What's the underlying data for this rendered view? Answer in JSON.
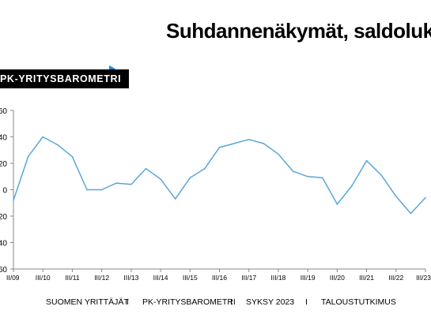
{
  "header": {
    "title": "Suhdannenäkymät, saldoluku",
    "brand": "PK-YRITYSBAROMETRI"
  },
  "footer": {
    "items": [
      "SUOMEN YRITTÄJÄT",
      "PK-YRITYSBAROMETRI",
      "SYKSY 2023",
      "TALOUSTUTKIMUS"
    ],
    "separator": "I"
  },
  "chart_data": {
    "type": "line",
    "title": "Suhdannenäkymät, saldoluku",
    "xlabel": "",
    "ylabel": "",
    "ylim": [
      -60,
      60
    ],
    "yticks": [
      -60,
      -40,
      -20,
      0,
      20,
      40,
      60
    ],
    "ytick_labels": [
      "60",
      "40",
      "20",
      "0",
      "20",
      "40",
      "60"
    ],
    "x_tick_labels": [
      "II/09",
      "III/10",
      "III/11",
      "III/12",
      "III/13",
      "III/14",
      "III/15",
      "III/16",
      "III/17",
      "III/18",
      "III/19",
      "III/20",
      "III/21",
      "III/22",
      "III/23"
    ],
    "grid": false,
    "legend": "none",
    "series_color": "#5aa6d8",
    "series": [
      {
        "values": [
          -8,
          25,
          40,
          34,
          25,
          0,
          0,
          5,
          4,
          16,
          8,
          -7,
          9,
          16,
          32,
          35,
          38,
          35,
          27,
          14,
          10,
          9,
          -11,
          3,
          22,
          11,
          -5,
          -18,
          -6
        ]
      }
    ]
  }
}
